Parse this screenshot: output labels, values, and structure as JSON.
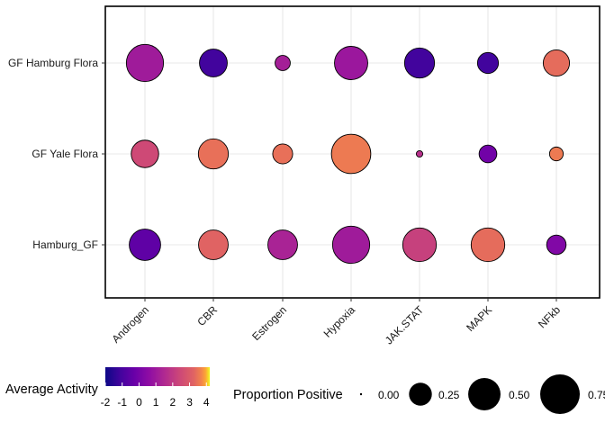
{
  "chart_data": {
    "type": "scatter",
    "subtype": "dot-plot",
    "x_categories": [
      "Androgen",
      "CBR",
      "Estrogen",
      "Hypoxia",
      "JAK.STAT",
      "MAPK",
      "NFkb"
    ],
    "y_categories": [
      "GF Hamburg Flora",
      "GF Yale Flora",
      "Hamburg_GF"
    ],
    "points": [
      {
        "x": "Androgen",
        "y": "GF Hamburg Flora",
        "activity": 0.4,
        "proportion": 0.66
      },
      {
        "x": "CBR",
        "y": "GF Hamburg Flora",
        "activity": -1.3,
        "proportion": 0.37
      },
      {
        "x": "Estrogen",
        "y": "GF Hamburg Flora",
        "activity": 0.5,
        "proportion": 0.11
      },
      {
        "x": "Hypoxia",
        "y": "GF Hamburg Flora",
        "activity": 0.3,
        "proportion": 0.53
      },
      {
        "x": "JAK.STAT",
        "y": "GF Hamburg Flora",
        "activity": -1.3,
        "proportion": 0.43
      },
      {
        "x": "MAPK",
        "y": "GF Hamburg Flora",
        "activity": -1.3,
        "proportion": 0.21
      },
      {
        "x": "NFkb",
        "y": "GF Hamburg Flora",
        "activity": 2.3,
        "proportion": 0.33
      },
      {
        "x": "Androgen",
        "y": "GF Yale Flora",
        "activity": 1.5,
        "proportion": 0.36
      },
      {
        "x": "CBR",
        "y": "GF Yale Flora",
        "activity": 2.4,
        "proportion": 0.43
      },
      {
        "x": "Estrogen",
        "y": "GF Yale Flora",
        "activity": 2.4,
        "proportion": 0.19
      },
      {
        "x": "Hypoxia",
        "y": "GF Yale Flora",
        "activity": 2.6,
        "proportion": 0.74
      },
      {
        "x": "JAK.STAT",
        "y": "GF Yale Flora",
        "activity": 0.9,
        "proportion": 0.02
      },
      {
        "x": "MAPK",
        "y": "GF Yale Flora",
        "activity": -0.5,
        "proportion": 0.15
      },
      {
        "x": "NFkb",
        "y": "GF Yale Flora",
        "activity": 2.6,
        "proportion": 0.09
      },
      {
        "x": "Androgen",
        "y": "Hamburg_GF",
        "activity": -0.8,
        "proportion": 0.47
      },
      {
        "x": "CBR",
        "y": "Hamburg_GF",
        "activity": 2.1,
        "proportion": 0.42
      },
      {
        "x": "Estrogen",
        "y": "Hamburg_GF",
        "activity": 0.6,
        "proportion": 0.42
      },
      {
        "x": "Hypoxia",
        "y": "Hamburg_GF",
        "activity": 0.4,
        "proportion": 0.66
      },
      {
        "x": "JAK.STAT",
        "y": "Hamburg_GF",
        "activity": 1.3,
        "proportion": 0.54
      },
      {
        "x": "MAPK",
        "y": "Hamburg_GF",
        "activity": 2.3,
        "proportion": 0.54
      },
      {
        "x": "NFkb",
        "y": "Hamburg_GF",
        "activity": -0.2,
        "proportion": 0.18
      }
    ],
    "color_scale": {
      "title": "Average Activity",
      "palette": "plasma",
      "range": [
        -2,
        4.2
      ],
      "ticks": [
        "-2",
        "-1",
        "0",
        "1",
        "2",
        "3",
        "4"
      ],
      "tick_values": [
        -2,
        -1,
        0,
        1,
        2,
        3,
        4
      ]
    },
    "size_scale": {
      "title": "Proportion Positive",
      "range": [
        0,
        0.75
      ],
      "breaks": [
        0,
        0.25,
        0.5,
        0.75
      ],
      "labels": [
        "0.00",
        "0.25",
        "0.50",
        "0.75"
      ]
    },
    "grid": true,
    "legend_position": "bottom"
  }
}
